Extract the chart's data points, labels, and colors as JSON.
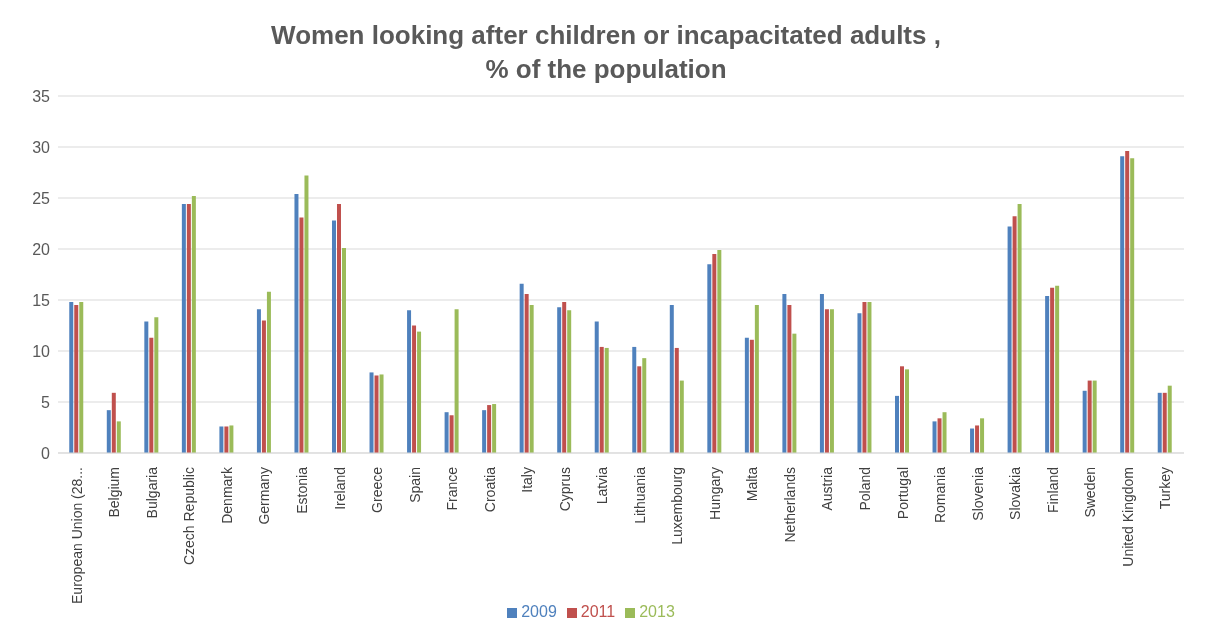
{
  "chart_data": {
    "type": "bar",
    "title": "Women looking after children or incapacitated adults ,\n% of the population",
    "categories": [
      "European Union (28...",
      "Belgium",
      "Bulgaria",
      "Czech Republic",
      "Denmark",
      "Germany",
      "Estonia",
      "Ireland",
      "Greece",
      "Spain",
      "France",
      "Croatia",
      "Italy",
      "Cyprus",
      "Latvia",
      "Lithuania",
      "Luxembourg",
      "Hungary",
      "Malta",
      "Netherlands",
      "Austria",
      "Poland",
      "Portugal",
      "Romania",
      "Slovenia",
      "Slovakia",
      "Finland",
      "Sweden",
      "United Kingdom",
      "Turkey"
    ],
    "series": [
      {
        "name": "2009",
        "color": "#4f81bd",
        "values": [
          14.8,
          4.2,
          12.9,
          24.4,
          2.6,
          14.1,
          25.4,
          22.8,
          7.9,
          14.0,
          4.0,
          4.2,
          16.6,
          14.3,
          12.9,
          10.4,
          14.5,
          18.5,
          11.3,
          15.6,
          15.6,
          13.7,
          5.6,
          3.1,
          2.4,
          22.2,
          15.4,
          6.1,
          29.1,
          5.9
        ]
      },
      {
        "name": "2011",
        "color": "#c0504d",
        "values": [
          14.5,
          5.9,
          11.3,
          24.4,
          2.6,
          13.0,
          23.1,
          24.4,
          7.6,
          12.5,
          3.7,
          4.7,
          15.6,
          14.8,
          10.4,
          8.5,
          10.3,
          19.5,
          11.1,
          14.5,
          14.1,
          14.8,
          8.5,
          3.4,
          2.7,
          23.2,
          16.2,
          7.1,
          29.6,
          5.9
        ]
      },
      {
        "name": "2013",
        "color": "#9bbb59",
        "values": [
          14.8,
          3.1,
          13.3,
          25.2,
          2.7,
          15.8,
          27.2,
          20.1,
          7.7,
          11.9,
          14.1,
          4.8,
          14.5,
          14.0,
          10.3,
          9.3,
          7.1,
          19.9,
          14.5,
          11.7,
          14.1,
          14.8,
          8.2,
          4.0,
          3.4,
          24.4,
          16.4,
          7.1,
          28.9,
          6.6
        ]
      }
    ],
    "ylim": [
      0,
      35
    ],
    "yticks": [
      0,
      5,
      10,
      15,
      20,
      25,
      30,
      35
    ],
    "grid": "y",
    "legend": "bottom"
  }
}
